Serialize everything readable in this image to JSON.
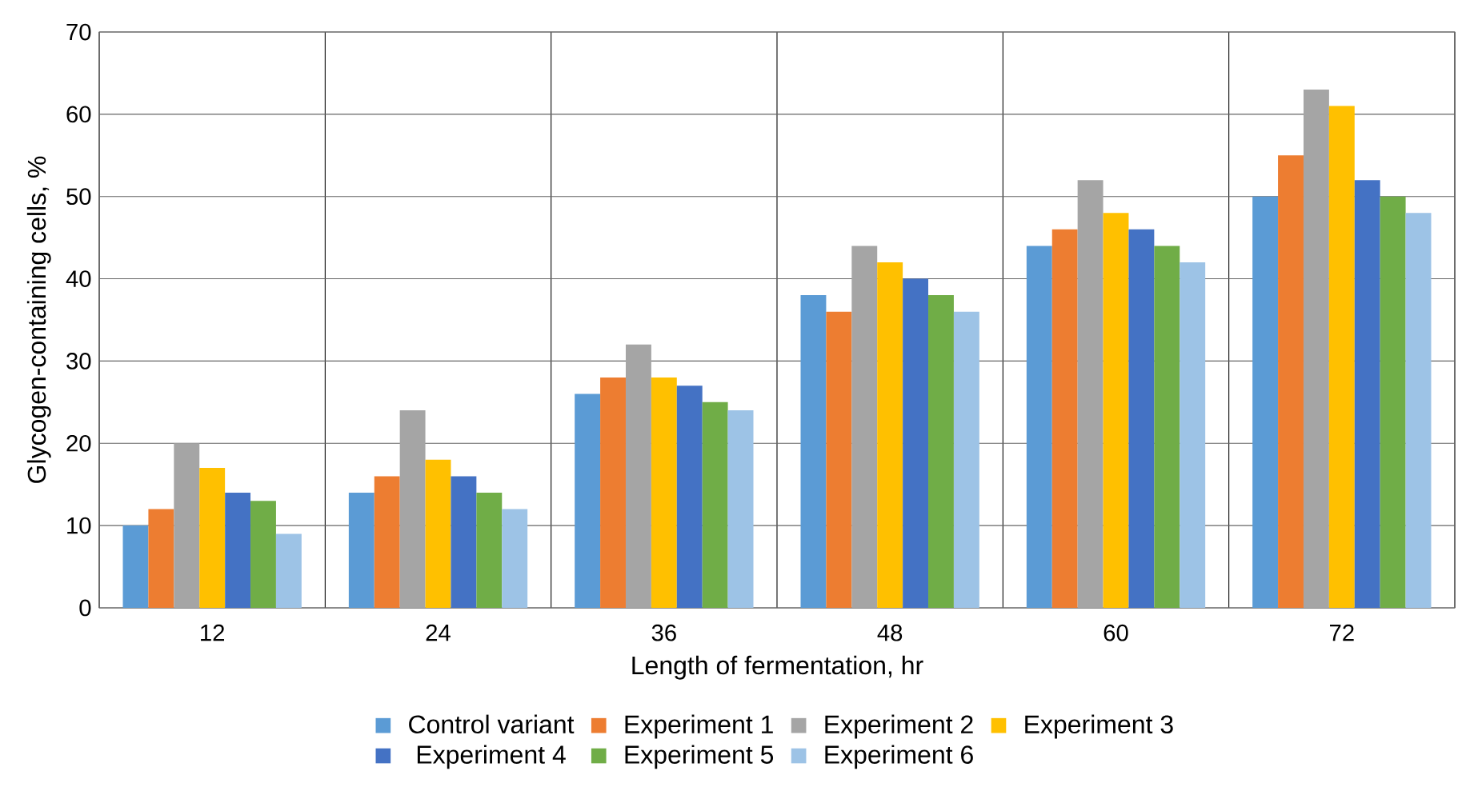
{
  "chart_data": {
    "type": "bar",
    "xlabel": "Length of fermentation, hr",
    "ylabel": "Glycogen-containing cells, %",
    "categories": [
      "12",
      "24",
      "36",
      "48",
      "60",
      "72"
    ],
    "series": [
      {
        "name": "Control variant",
        "color": "#5b9bd5",
        "values": [
          10,
          14,
          26,
          38,
          44,
          50
        ]
      },
      {
        "name": "Experiment 1",
        "color": "#ed7d31",
        "values": [
          12,
          16,
          28,
          36,
          46,
          55
        ]
      },
      {
        "name": "Experiment 2",
        "color": "#a5a5a5",
        "values": [
          20,
          24,
          32,
          44,
          52,
          63
        ]
      },
      {
        "name": "Experiment 3",
        "color": "#ffc000",
        "values": [
          17,
          18,
          28,
          42,
          48,
          61
        ]
      },
      {
        "name": "Experiment 4",
        "color": "#4472c4",
        "values": [
          14,
          16,
          27,
          40,
          46,
          52
        ]
      },
      {
        "name": "Experiment 5",
        "color": "#70ad47",
        "values": [
          13,
          14,
          25,
          38,
          44,
          50
        ]
      },
      {
        "name": "Experiment 6",
        "color": "#9dc3e6",
        "values": [
          9,
          12,
          24,
          36,
          42,
          48
        ]
      }
    ],
    "ylim": [
      0,
      70
    ],
    "yticks": [
      0,
      10,
      20,
      30,
      40,
      50,
      60,
      70
    ],
    "grid": true,
    "legend": "bottom"
  }
}
